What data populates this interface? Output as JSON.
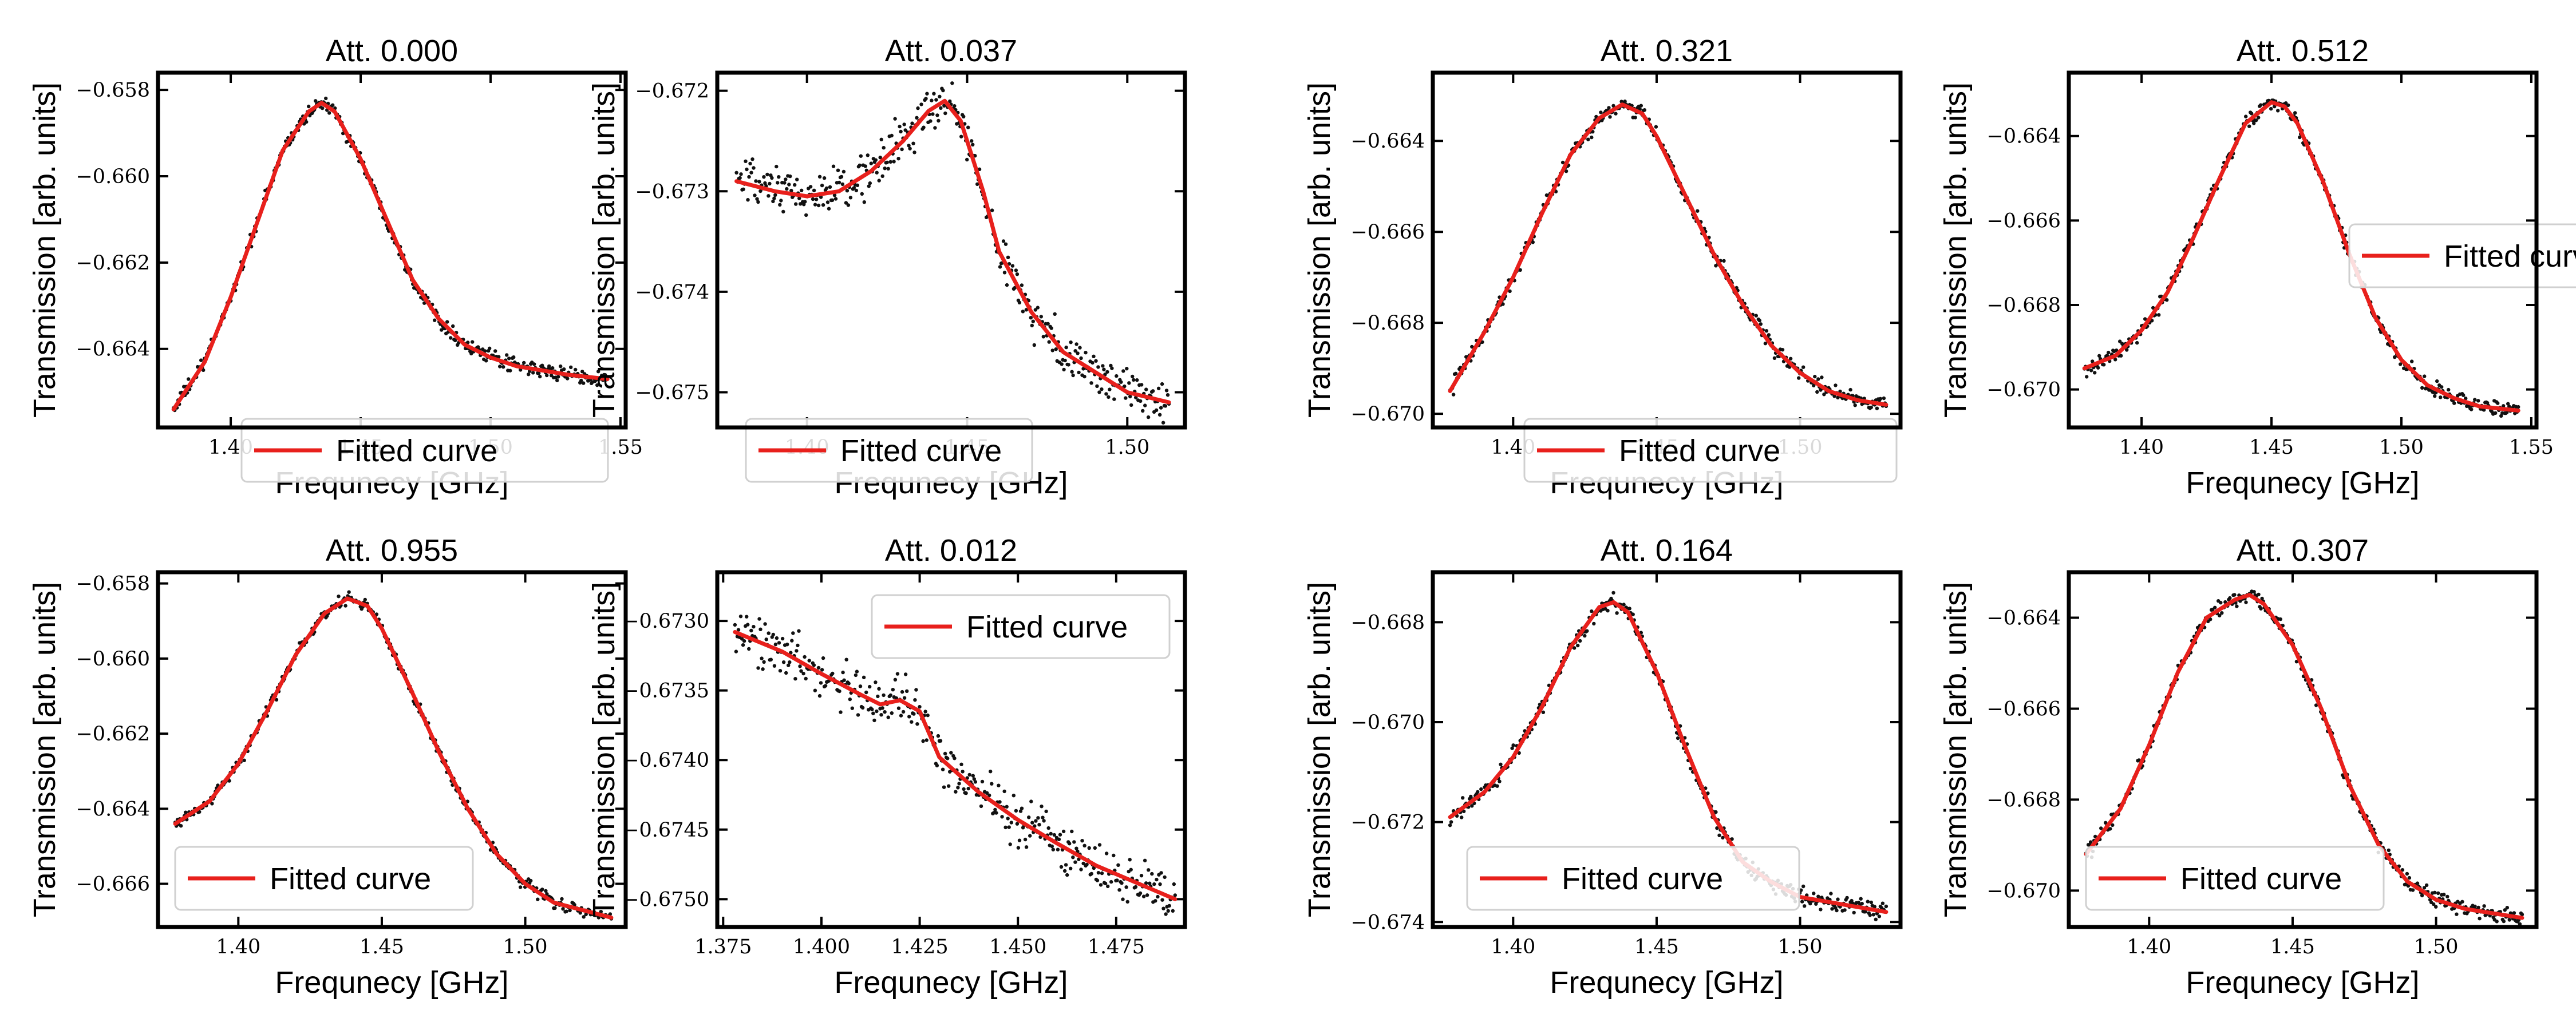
{
  "figure": {
    "colors": {
      "fit": "#e8201c",
      "data": "#111111",
      "axes": "#000000"
    }
  },
  "chart_data": [
    {
      "type": "scatter",
      "title": "Att. 0.000",
      "xlabel": "Frequnecy [GHz]",
      "ylabel": "Transmission [arb. units]",
      "xlim": [
        1.372,
        1.552
      ],
      "ylim": [
        -0.66582,
        -0.6576
      ],
      "xticks": [
        1.4,
        1.45,
        1.5,
        1.55
      ],
      "xtick_labels": [
        "1.40",
        "1.45",
        "1.50",
        "1.55"
      ],
      "yticks": [
        -0.664,
        -0.662,
        -0.66,
        -0.658
      ],
      "ytick_labels": [
        "−0.664",
        "−0.662",
        "−0.660",
        "−0.658"
      ],
      "legend": {
        "label": "Fitted curve",
        "placement": "lower-center"
      },
      "series": [
        {
          "kind": "fit",
          "label": "Fitted curve",
          "x": [
            1.378,
            1.39,
            1.4,
            1.41,
            1.42,
            1.43,
            1.435,
            1.44,
            1.45,
            1.46,
            1.47,
            1.48,
            1.49,
            1.5,
            1.51,
            1.52,
            1.53,
            1.545
          ],
          "y": [
            -0.6654,
            -0.6643,
            -0.6628,
            -0.6611,
            -0.6594,
            -0.6585,
            -0.6583,
            -0.6585,
            -0.6596,
            -0.661,
            -0.6624,
            -0.6633,
            -0.6639,
            -0.6642,
            -0.6644,
            -0.6645,
            -0.6646,
            -0.6647
          ]
        },
        {
          "kind": "data",
          "x_range": [
            1.378,
            1.545
          ],
          "noise": 0.00012
        }
      ]
    },
    {
      "type": "scatter",
      "title": "Att. 0.037",
      "xlabel": "Frequnecy [GHz]",
      "ylabel": "Transmission [arb. units]",
      "xlim": [
        1.372,
        1.518
      ],
      "ylim": [
        -0.67535,
        -0.67182
      ],
      "xticks": [
        1.4,
        1.45,
        1.5
      ],
      "xtick_labels": [
        "1.40",
        "1.45",
        "1.50"
      ],
      "yticks": [
        -0.675,
        -0.674,
        -0.673,
        -0.672
      ],
      "ytick_labels": [
        "−0.675",
        "−0.674",
        "−0.673",
        "−0.672"
      ],
      "legend": {
        "label": "Fitted curve",
        "placement": "lower-left"
      },
      "series": [
        {
          "kind": "fit",
          "label": "Fitted curve",
          "x": [
            1.378,
            1.39,
            1.4,
            1.41,
            1.42,
            1.43,
            1.438,
            1.443,
            1.448,
            1.455,
            1.46,
            1.47,
            1.48,
            1.49,
            1.5,
            1.513
          ],
          "y": [
            -0.6729,
            -0.673,
            -0.67305,
            -0.673,
            -0.6728,
            -0.6725,
            -0.6722,
            -0.6721,
            -0.6723,
            -0.673,
            -0.6736,
            -0.6742,
            -0.6746,
            -0.6748,
            -0.675,
            -0.6751
          ]
        },
        {
          "kind": "data",
          "x_range": [
            1.378,
            1.513
          ],
          "noise": 0.00016
        }
      ]
    },
    {
      "type": "scatter",
      "title": "Att. 0.321",
      "xlabel": "Frequnecy [GHz]",
      "ylabel": "Transmission [arb. units]",
      "xlim": [
        1.372,
        1.535
      ],
      "ylim": [
        -0.6703,
        -0.6625
      ],
      "xticks": [
        1.4,
        1.45,
        1.5
      ],
      "xtick_labels": [
        "1.40",
        "1.45",
        "1.50"
      ],
      "yticks": [
        -0.67,
        -0.668,
        -0.666,
        -0.664
      ],
      "ytick_labels": [
        "−0.670",
        "−0.668",
        "−0.666",
        "−0.664"
      ],
      "legend": {
        "label": "Fitted curve",
        "placement": "lower-center"
      },
      "series": [
        {
          "kind": "fit",
          "label": "Fitted curve",
          "x": [
            1.378,
            1.39,
            1.4,
            1.41,
            1.42,
            1.43,
            1.438,
            1.445,
            1.45,
            1.46,
            1.47,
            1.48,
            1.49,
            1.5,
            1.51,
            1.52,
            1.53
          ],
          "y": [
            -0.6695,
            -0.6682,
            -0.667,
            -0.6656,
            -0.6643,
            -0.6635,
            -0.6632,
            -0.6634,
            -0.6639,
            -0.6652,
            -0.6665,
            -0.6676,
            -0.6685,
            -0.6691,
            -0.6695,
            -0.6697,
            -0.6698
          ]
        },
        {
          "kind": "data",
          "x_range": [
            1.378,
            1.53
          ],
          "noise": 0.00012
        }
      ]
    },
    {
      "type": "scatter",
      "title": "Att. 0.512",
      "xlabel": "Frequnecy [GHz]",
      "ylabel": "Transmission [arb. units]",
      "xlim": [
        1.372,
        1.552
      ],
      "ylim": [
        -0.6709,
        -0.6625
      ],
      "xticks": [
        1.4,
        1.45,
        1.5,
        1.55
      ],
      "xtick_labels": [
        "1.40",
        "1.45",
        "1.50",
        "1.55"
      ],
      "yticks": [
        -0.67,
        -0.668,
        -0.666,
        -0.664
      ],
      "ytick_labels": [
        "−0.670",
        "−0.668",
        "−0.666",
        "−0.664"
      ],
      "legend": {
        "label": "Fitted curve",
        "placement": "center-right"
      },
      "series": [
        {
          "kind": "fit",
          "label": "Fitted curve",
          "x": [
            1.378,
            1.39,
            1.4,
            1.41,
            1.42,
            1.43,
            1.44,
            1.45,
            1.455,
            1.46,
            1.47,
            1.48,
            1.49,
            1.5,
            1.51,
            1.52,
            1.53,
            1.545
          ],
          "y": [
            -0.6695,
            -0.6692,
            -0.6686,
            -0.6677,
            -0.6664,
            -0.665,
            -0.6637,
            -0.6632,
            -0.6633,
            -0.6637,
            -0.6651,
            -0.6668,
            -0.6683,
            -0.6693,
            -0.6699,
            -0.6702,
            -0.6704,
            -0.6705
          ]
        },
        {
          "kind": "data",
          "x_range": [
            1.378,
            1.545
          ],
          "noise": 0.00013
        }
      ]
    },
    {
      "type": "scatter",
      "title": "Att. 0.955",
      "xlabel": "Frequnecy [GHz]",
      "ylabel": "Transmission [arb. units]",
      "xlim": [
        1.372,
        1.535
      ],
      "ylim": [
        -0.66715,
        -0.6577
      ],
      "xticks": [
        1.4,
        1.45,
        1.5
      ],
      "xtick_labels": [
        "1.40",
        "1.45",
        "1.50"
      ],
      "yticks": [
        -0.666,
        -0.664,
        -0.662,
        -0.66,
        -0.658
      ],
      "ytick_labels": [
        "−0.666",
        "−0.664",
        "−0.662",
        "−0.660",
        "−0.658"
      ],
      "legend": {
        "label": "Fitted curve",
        "placement": "lower-left"
      },
      "series": [
        {
          "kind": "fit",
          "label": "Fitted curve",
          "x": [
            1.378,
            1.39,
            1.4,
            1.41,
            1.42,
            1.43,
            1.438,
            1.445,
            1.45,
            1.46,
            1.47,
            1.48,
            1.49,
            1.5,
            1.51,
            1.52,
            1.53
          ],
          "y": [
            -0.6644,
            -0.6638,
            -0.6628,
            -0.6614,
            -0.6599,
            -0.6588,
            -0.6584,
            -0.6586,
            -0.6592,
            -0.6608,
            -0.6625,
            -0.664,
            -0.6652,
            -0.666,
            -0.6665,
            -0.6667,
            -0.6669
          ]
        },
        {
          "kind": "data",
          "x_range": [
            1.378,
            1.53
          ],
          "noise": 0.00012
        }
      ]
    },
    {
      "type": "scatter",
      "title": "Att. 0.012",
      "xlabel": "Frequnecy [GHz]",
      "ylabel": "Transmission [arb. units]",
      "xlim": [
        1.3735,
        1.4925
      ],
      "ylim": [
        -0.6752,
        -0.67265
      ],
      "xticks": [
        1.375,
        1.4,
        1.425,
        1.45,
        1.475
      ],
      "xtick_labels": [
        "1.375",
        "1.400",
        "1.425",
        "1.450",
        "1.475"
      ],
      "yticks": [
        -0.675,
        -0.6745,
        -0.674,
        -0.6735,
        -0.673
      ],
      "ytick_labels": [
        "−0.6750",
        "−0.6745",
        "−0.6740",
        "−0.6735",
        "−0.6730"
      ],
      "legend": {
        "label": "Fitted curve",
        "placement": "upper-right"
      },
      "series": [
        {
          "kind": "fit",
          "label": "Fitted curve",
          "x": [
            1.378,
            1.39,
            1.4,
            1.41,
            1.415,
            1.42,
            1.425,
            1.43,
            1.44,
            1.45,
            1.46,
            1.47,
            1.48,
            1.49
          ],
          "y": [
            -0.67308,
            -0.67322,
            -0.67338,
            -0.67353,
            -0.6736,
            -0.67357,
            -0.67365,
            -0.67398,
            -0.67423,
            -0.67443,
            -0.6746,
            -0.67476,
            -0.67488,
            -0.675
          ]
        },
        {
          "kind": "data",
          "x_range": [
            1.378,
            1.49
          ],
          "noise": 0.00012
        }
      ]
    },
    {
      "type": "scatter",
      "title": "Att. 0.164",
      "xlabel": "Frequnecy [GHz]",
      "ylabel": "Transmission [arb. units]",
      "xlim": [
        1.372,
        1.535
      ],
      "ylim": [
        -0.6741,
        -0.667
      ],
      "xticks": [
        1.4,
        1.45,
        1.5
      ],
      "xtick_labels": [
        "1.40",
        "1.45",
        "1.50"
      ],
      "yticks": [
        -0.674,
        -0.672,
        -0.67,
        -0.668
      ],
      "ytick_labels": [
        "−0.674",
        "−0.672",
        "−0.670",
        "−0.668"
      ],
      "legend": {
        "label": "Fitted curve",
        "placement": "lower-left"
      },
      "series": [
        {
          "kind": "fit",
          "label": "Fitted curve",
          "x": [
            1.378,
            1.39,
            1.4,
            1.41,
            1.42,
            1.43,
            1.435,
            1.44,
            1.45,
            1.46,
            1.47,
            1.48,
            1.49,
            1.5,
            1.51,
            1.52,
            1.53
          ],
          "y": [
            -0.6719,
            -0.6714,
            -0.6707,
            -0.6697,
            -0.6685,
            -0.6677,
            -0.6676,
            -0.6678,
            -0.669,
            -0.6705,
            -0.6719,
            -0.6728,
            -0.6732,
            -0.6735,
            -0.6736,
            -0.6737,
            -0.6738
          ]
        },
        {
          "kind": "data",
          "x_range": [
            1.378,
            1.53
          ],
          "noise": 0.00012
        }
      ]
    },
    {
      "type": "scatter",
      "title": "Att. 0.307",
      "xlabel": "Frequnecy [GHz]",
      "ylabel": "Transmission [arb. units]",
      "xlim": [
        1.372,
        1.535
      ],
      "ylim": [
        -0.6708,
        -0.663
      ],
      "xticks": [
        1.4,
        1.45,
        1.5
      ],
      "xtick_labels": [
        "1.40",
        "1.45",
        "1.50"
      ],
      "yticks": [
        -0.67,
        -0.668,
        -0.666,
        -0.664
      ],
      "ytick_labels": [
        "−0.670",
        "−0.668",
        "−0.666",
        "−0.664"
      ],
      "legend": {
        "label": "Fitted curve",
        "placement": "lower-left"
      },
      "series": [
        {
          "kind": "fit",
          "label": "Fitted curve",
          "x": [
            1.378,
            1.39,
            1.4,
            1.41,
            1.42,
            1.43,
            1.435,
            1.44,
            1.45,
            1.46,
            1.47,
            1.48,
            1.49,
            1.5,
            1.51,
            1.52,
            1.53
          ],
          "y": [
            -0.6692,
            -0.6682,
            -0.6668,
            -0.6652,
            -0.664,
            -0.6636,
            -0.6635,
            -0.6637,
            -0.6646,
            -0.666,
            -0.6677,
            -0.669,
            -0.6698,
            -0.6702,
            -0.6704,
            -0.6705,
            -0.6706
          ]
        },
        {
          "kind": "data",
          "x_range": [
            1.378,
            1.53
          ],
          "noise": 0.00012
        }
      ]
    }
  ]
}
